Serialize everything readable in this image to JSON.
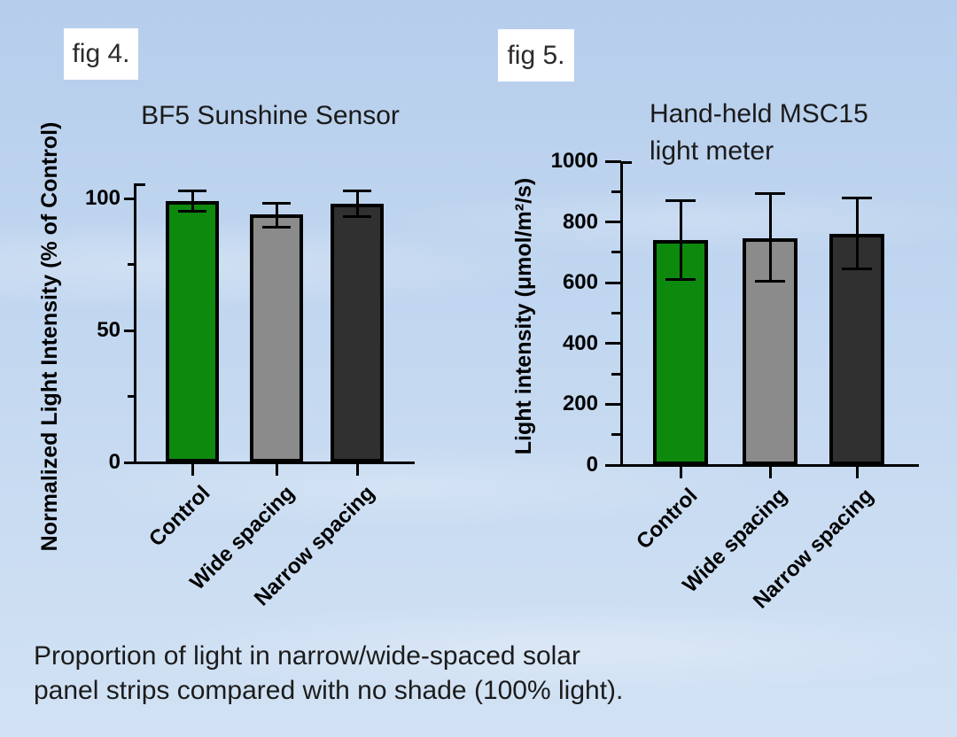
{
  "figure_labels": {
    "fig4": "fig 4.",
    "fig5": "fig 5."
  },
  "caption": {
    "line1": "Proportion of light in narrow/wide-spaced solar",
    "line2": "panel strips compared with no shade (100% light)."
  },
  "colors": {
    "control_bar": "#0d8a0d",
    "wide_spacing_bar": "#8b8b8b",
    "narrow_spacing_bar": "#303030",
    "axis": "#000000",
    "fig_label_background": "#ffffff",
    "sky_top": "#b6ceec",
    "sky_bottom": "#d2e2f4"
  },
  "chart_data": [
    {
      "type": "bar",
      "title": "BF5 Sunshine Sensor",
      "ylabel": "Normalized Light Intensity (% of Control)",
      "xlabel": "",
      "categories": [
        "Control",
        "Wide spacing",
        "Narrow spacing"
      ],
      "values": [
        99,
        94,
        98
      ],
      "error_low": [
        95,
        89,
        93
      ],
      "error_high": [
        103,
        98,
        103
      ],
      "bar_colors": [
        "#0d8a0d",
        "#8b8b8b",
        "#303030"
      ],
      "ylim": [
        0,
        100
      ],
      "yticks": [
        0,
        50,
        100
      ],
      "yticks_minor": [
        25,
        75
      ],
      "grid": false,
      "legend": "none",
      "error_bars": true
    },
    {
      "type": "bar",
      "title": "Hand-held MSC15\nlight meter",
      "ylabel": "Light intensity (μmol/m²/s)",
      "xlabel": "",
      "categories": [
        "Control",
        "Wide spacing",
        "Narrow spacing"
      ],
      "values": [
        740,
        745,
        760
      ],
      "error_low": [
        610,
        605,
        645
      ],
      "error_high": [
        870,
        895,
        880
      ],
      "bar_colors": [
        "#0d8a0d",
        "#8b8b8b",
        "#303030"
      ],
      "ylim": [
        0,
        1000
      ],
      "yticks": [
        0,
        200,
        400,
        600,
        800,
        1000
      ],
      "yticks_minor": [
        100,
        300,
        500,
        700,
        900
      ],
      "grid": false,
      "legend": "none",
      "error_bars": true
    }
  ]
}
